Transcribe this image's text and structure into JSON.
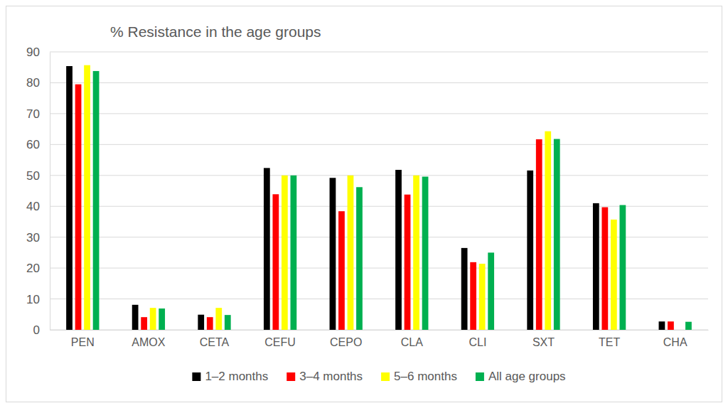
{
  "chart_data": {
    "type": "bar",
    "title": "% Resistance in the age groups",
    "categories": [
      "PEN",
      "AMOX",
      "CETA",
      "CEFU",
      "CEPO",
      "CLA",
      "CLI",
      "SXT",
      "TET",
      "CHA"
    ],
    "series": [
      {
        "name": "1–2 months",
        "color": "#000000",
        "values": [
          85.4,
          8.1,
          4.9,
          52.4,
          49.2,
          51.8,
          26.5,
          51.6,
          41.0,
          2.7
        ]
      },
      {
        "name": "3–4 months",
        "color": "#ff0000",
        "values": [
          79.5,
          4.1,
          4.1,
          43.9,
          38.4,
          43.8,
          21.9,
          61.7,
          39.7,
          2.7
        ]
      },
      {
        "name": "5–6 months",
        "color": "#ffff00",
        "values": [
          85.7,
          7.1,
          7.1,
          50.0,
          50.0,
          50.0,
          21.4,
          64.3,
          35.7,
          0
        ]
      },
      {
        "name": "All age groups",
        "color": "#00b050",
        "values": [
          83.8,
          6.9,
          4.8,
          50.0,
          46.2,
          49.6,
          25.0,
          61.8,
          40.4,
          2.6
        ]
      }
    ],
    "ylim": [
      0,
      90
    ],
    "yticks": [
      0,
      10,
      20,
      30,
      40,
      50,
      60,
      70,
      80,
      90
    ],
    "grid": true,
    "legend": "bottom"
  }
}
